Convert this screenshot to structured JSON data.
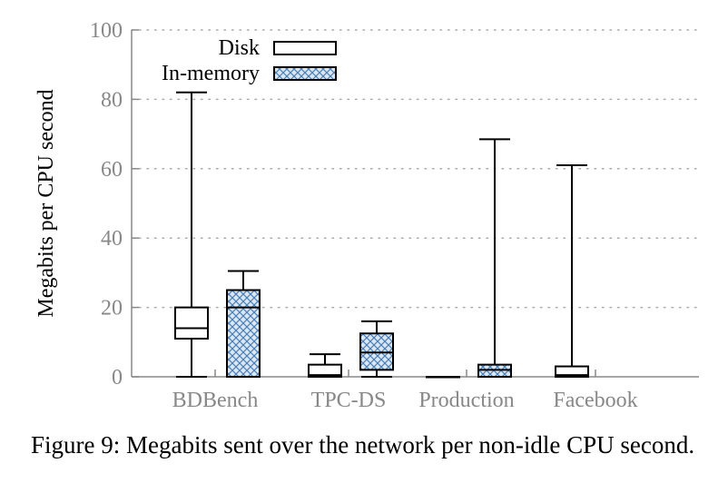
{
  "chart_data": {
    "type": "boxplot",
    "ylabel": "Megabits per CPU second",
    "ylim": [
      0,
      100
    ],
    "yticks": [
      "0",
      "20",
      "40",
      "60",
      "80",
      "100"
    ],
    "grid": "y-dotted",
    "legend_position": "top-center",
    "categories": [
      "BDBench",
      "TPC-DS",
      "Production",
      "Facebook"
    ],
    "series": [
      {
        "name": "Disk",
        "style": "open",
        "boxes": [
          {
            "min": 0,
            "q1": 11,
            "median": 14,
            "q3": 20,
            "max": 82
          },
          {
            "min": 0,
            "q1": 0,
            "median": 0.5,
            "q3": 3.5,
            "max": 6.5
          },
          {
            "min": 0,
            "q1": 0,
            "median": 0,
            "q3": 0,
            "max": 0
          },
          {
            "min": 0,
            "q1": 0,
            "median": 0.5,
            "q3": 3,
            "max": 61
          }
        ]
      },
      {
        "name": "In-memory",
        "style": "crosshatch",
        "boxes": [
          {
            "min": 0,
            "q1": 0,
            "median": 20,
            "q3": 25,
            "max": 30.5
          },
          {
            "min": 0,
            "q1": 2,
            "median": 7,
            "q3": 12.5,
            "max": 16
          },
          {
            "min": 0,
            "q1": 0,
            "median": 2,
            "q3": 3.5,
            "max": 68.5
          },
          null
        ]
      }
    ],
    "colors": {
      "hatch": "#4a7fb5",
      "hatch_bg": "#dbe7f3",
      "axis": "#888888",
      "grid": "#aaaaaa"
    }
  },
  "caption": "Figure 9: Megabits sent over the network per non-idle CPU second."
}
